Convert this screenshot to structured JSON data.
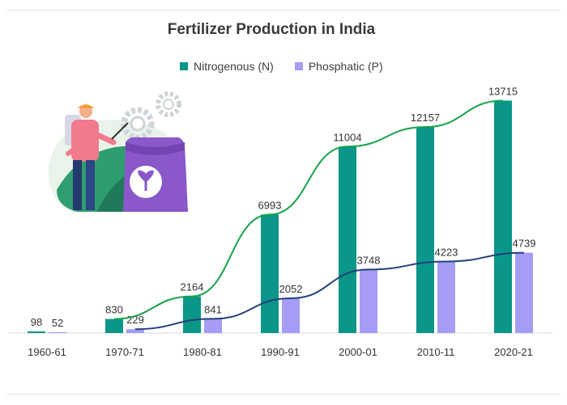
{
  "chart_data": {
    "type": "bar",
    "title": "Fertilizer Production in India",
    "categories": [
      "1960-61",
      "1970-71",
      "1980-81",
      "1990-91",
      "2000-01",
      "2010-11",
      "2020-21"
    ],
    "series": [
      {
        "name": "Nitrogenous (N)",
        "values": [
          98,
          830,
          2164,
          6993,
          11004,
          12157,
          13715
        ],
        "color": "#0a9688",
        "trend_color": "#16a34a"
      },
      {
        "name": "Phosphatic (P)",
        "values": [
          52,
          229,
          841,
          2052,
          3748,
          4223,
          4739
        ],
        "color": "#a59cf3",
        "trend_color": "#23407a"
      }
    ],
    "trend_lines": true,
    "ylim": [
      0,
      14500
    ],
    "grid": false,
    "legend_position": "top"
  },
  "illustration": {
    "icon": "farmer-spraying-fertilizer-icon",
    "leaf_color": "#2f9e6e",
    "bag_color": "#8a58c9"
  }
}
